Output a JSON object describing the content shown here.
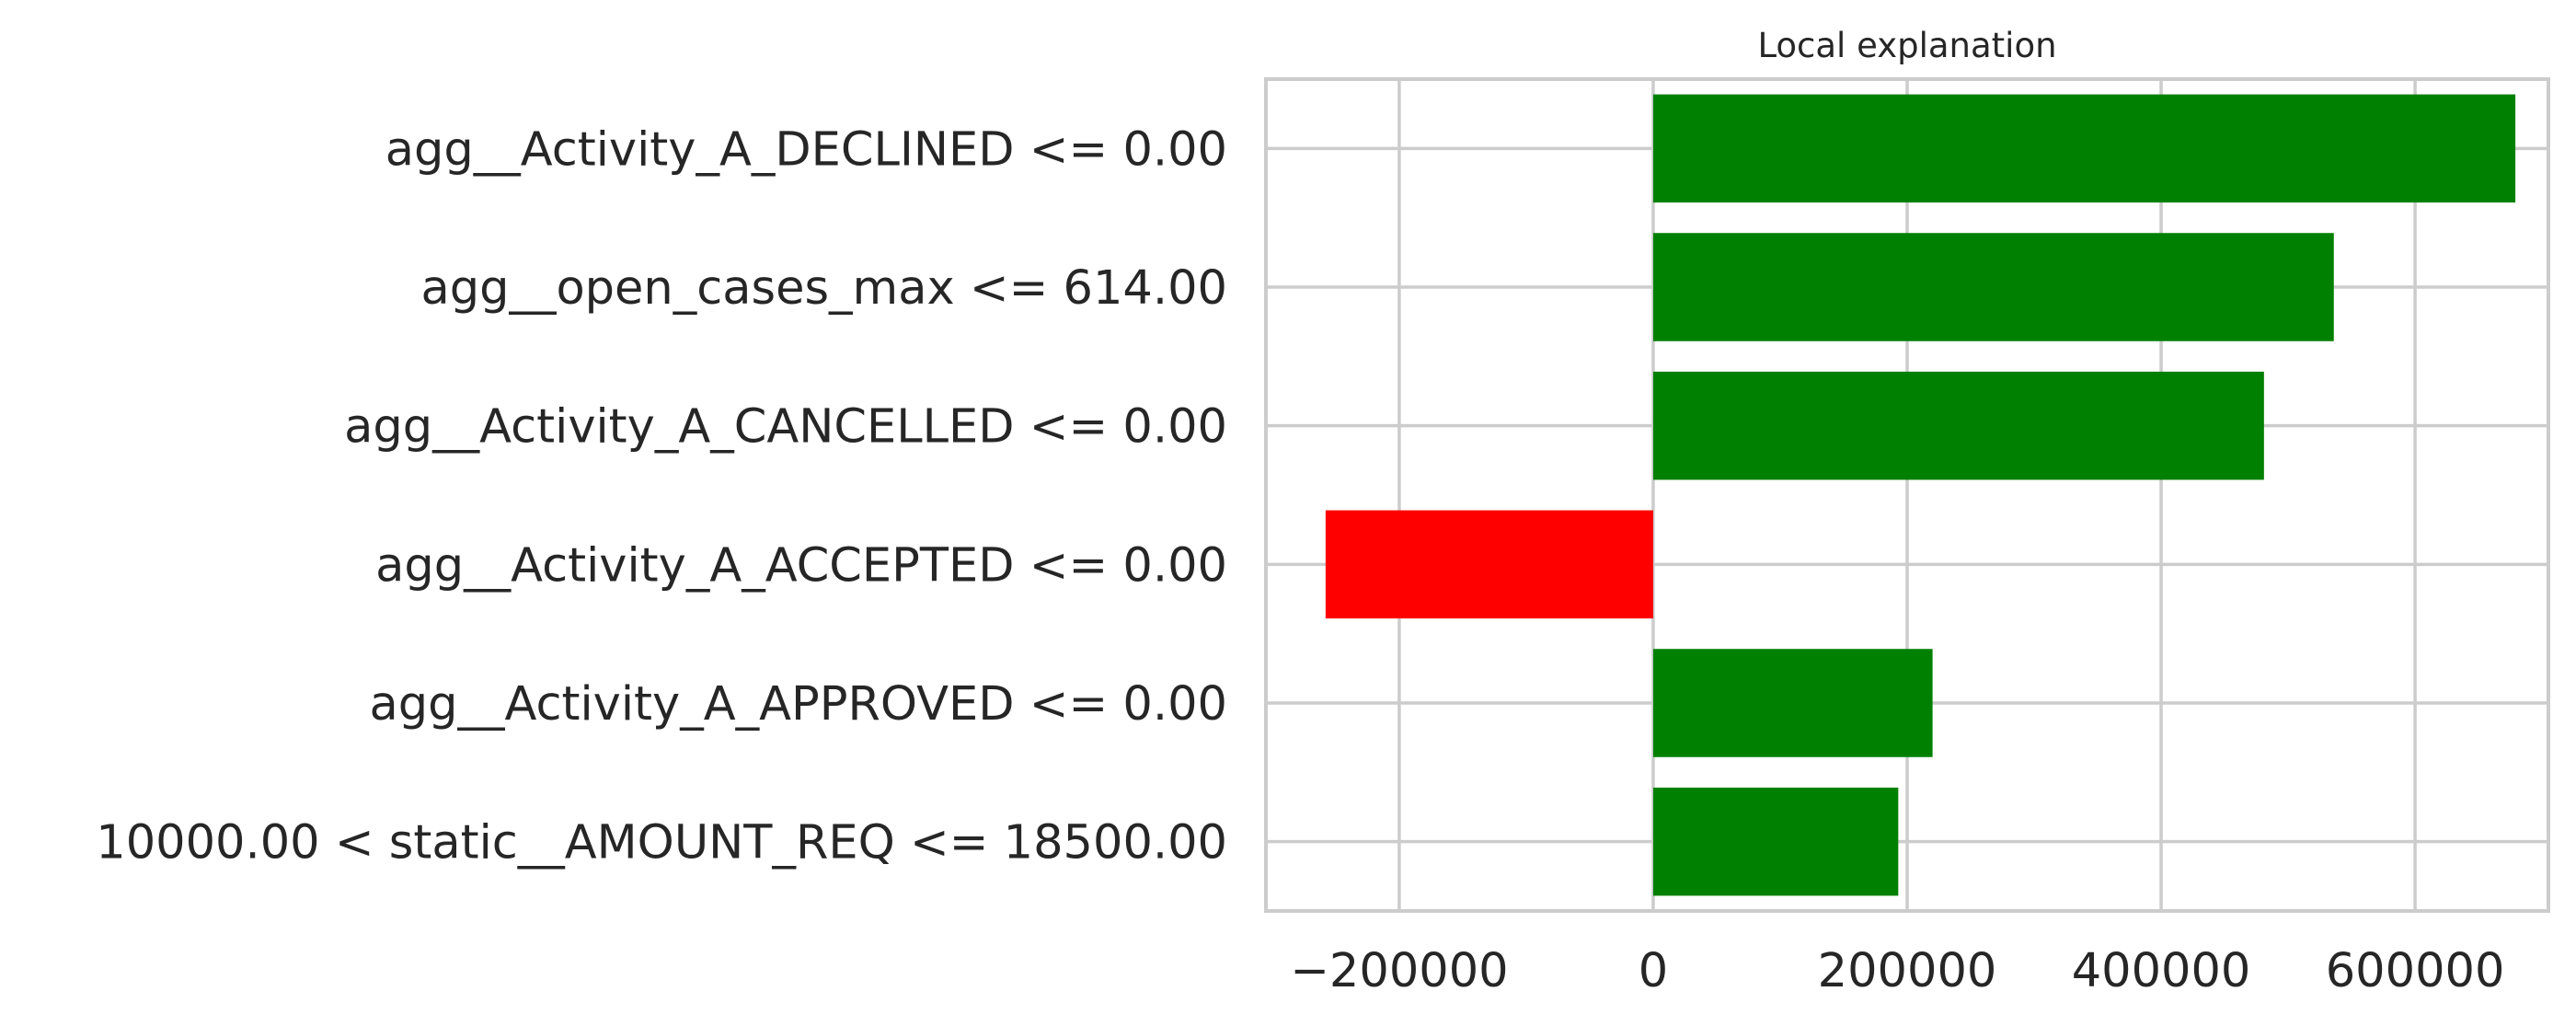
{
  "chart_data": {
    "type": "bar",
    "orientation": "horizontal",
    "title": "Local explanation",
    "xlabel": "",
    "ylabel": "",
    "categories": [
      "agg__Activity_A_DECLINED <= 0.00",
      "agg__open_cases_max <= 614.00",
      "agg__Activity_A_CANCELLED <= 0.00",
      "agg__Activity_A_ACCEPTED <= 0.00",
      "agg__Activity_A_APPROVED <= 0.00",
      "10000.00 < static__AMOUNT_REQ <= 18500.00"
    ],
    "values": [
      679000,
      536000,
      481000,
      -258000,
      220000,
      193000
    ],
    "colors": [
      "#008000",
      "#008000",
      "#008000",
      "#ff0000",
      "#008000",
      "#008000"
    ],
    "positive_color": "#008000",
    "negative_color": "#ff0000",
    "xlim": [
      -305000,
      705000
    ],
    "xticks": [
      -200000,
      0,
      200000,
      400000,
      600000
    ],
    "xtick_labels": [
      "−200000",
      "0",
      "200000",
      "400000",
      "600000"
    ],
    "grid": true,
    "legend": "none"
  }
}
